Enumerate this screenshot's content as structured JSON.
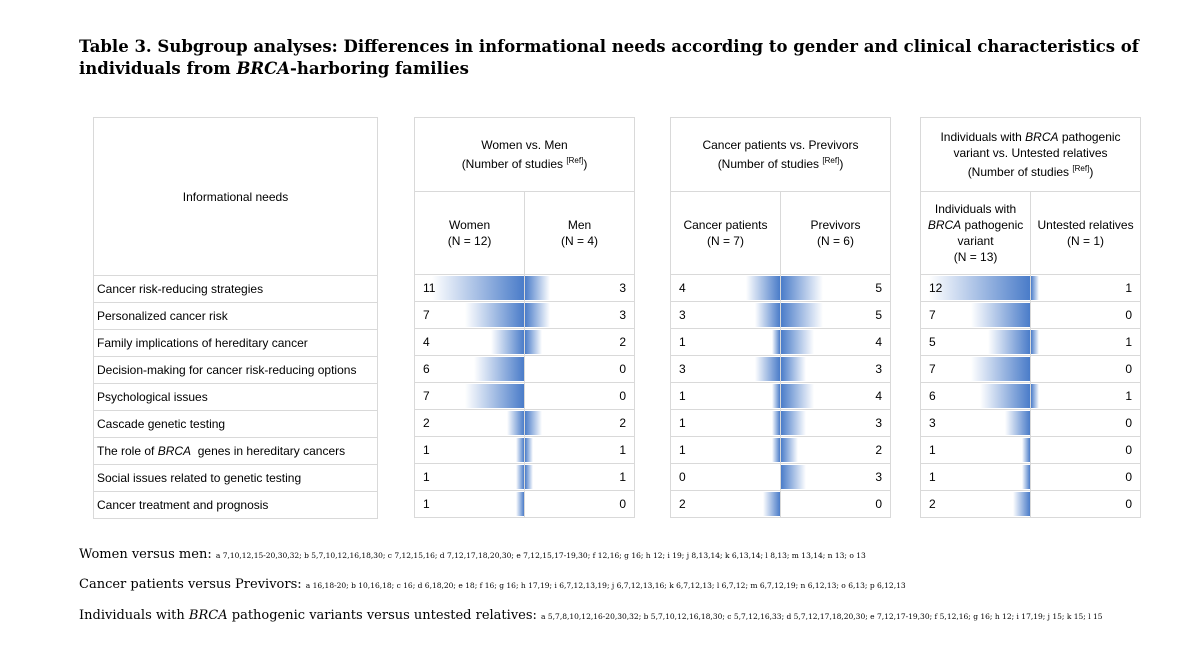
{
  "title": {
    "part1": "Table 3. Subgroup analyses: Differences in informational needs according to gender and clinical characteristics of individuals from ",
    "italic": "BRCA",
    "part2": "-harboring families"
  },
  "label_header": "Informational needs",
  "groups": [
    {
      "title": "Women vs. Men",
      "studies": "(Number of studies ",
      "ref": "[Ref]",
      "close": ")",
      "left": {
        "label": "Women",
        "n": "(N = 12)"
      },
      "right": {
        "label": "Men",
        "n": "(N = 4)"
      },
      "max": 13
    },
    {
      "title": "Cancer patients vs. Previvors",
      "studies": "(Number of studies ",
      "ref": "[Ref]",
      "close": ")",
      "left": {
        "label": "Cancer patients",
        "n": "(N = 7)"
      },
      "right": {
        "label": "Previvors",
        "n": "(N = 6)"
      },
      "max": 13
    },
    {
      "title_pre": "Individuals with ",
      "title_italic": "BRCA",
      "title_post": " pathogenic variant vs. Untested relatives",
      "studies": "(Number of studies ",
      "ref": "[Ref]",
      "close": ")",
      "left": {
        "label_pre": "Individuals with",
        "label_italic": "BRCA",
        "label_post": " pathogenic variant",
        "n": "(N = 13)"
      },
      "right": {
        "label": "Untested relatives",
        "n": "(N = 1)"
      },
      "max": 13
    }
  ],
  "rows": [
    {
      "label": "Cancer risk-reducing strategies",
      "values": [
        [
          11,
          3
        ],
        [
          4,
          5
        ],
        [
          12,
          1
        ]
      ]
    },
    {
      "label": "Personalized cancer risk",
      "values": [
        [
          7,
          3
        ],
        [
          3,
          5
        ],
        [
          7,
          0
        ]
      ]
    },
    {
      "label": "Family implications of hereditary cancer",
      "values": [
        [
          4,
          2
        ],
        [
          1,
          4
        ],
        [
          5,
          1
        ]
      ]
    },
    {
      "label": "Decision-making for cancer risk-reducing options",
      "values": [
        [
          6,
          0
        ],
        [
          3,
          3
        ],
        [
          7,
          0
        ]
      ]
    },
    {
      "label": "Psychological issues",
      "values": [
        [
          7,
          0
        ],
        [
          1,
          4
        ],
        [
          6,
          1
        ]
      ]
    },
    {
      "label": "Cascade genetic testing",
      "values": [
        [
          2,
          2
        ],
        [
          1,
          3
        ],
        [
          3,
          0
        ]
      ]
    },
    {
      "label_pre": "The role of ",
      "label_italic": "BRCA",
      "label_post": "  genes in hereditary cancers",
      "values": [
        [
          1,
          1
        ],
        [
          1,
          2
        ],
        [
          1,
          0
        ]
      ]
    },
    {
      "label": "Social issues related to genetic testing",
      "values": [
        [
          1,
          1
        ],
        [
          0,
          3
        ],
        [
          1,
          0
        ]
      ]
    },
    {
      "label": "Cancer treatment and prognosis",
      "values": [
        [
          1,
          0
        ],
        [
          2,
          0
        ],
        [
          2,
          0
        ]
      ]
    }
  ],
  "footnotes": [
    {
      "label": "Women versus men: ",
      "refs": "a 7,10,12,15-20,30,32; b 5,7,10,12,16,18,30; c 7,12,15,16; d 7,12,17,18,20,30; e 7,12,15,17-19,30; f 12,16; g 16; h 12; i 19; j 8,13,14; k 6,13,14; l 8,13; m 13,14; n 13; o 13"
    },
    {
      "label": "Cancer patients versus Previvors: ",
      "refs": "a 16,18-20; b 10,16,18; c 16; d 6,18,20; e 18; f 16; g 16; h 17,19; i 6,7,12,13,19; j 6,7,12,13,16; k 6,7,12,13; l 6,7,12; m 6,7,12,19; n 6,12,13; o 6,13; p 6,12,13"
    },
    {
      "label_pre": "Individuals with ",
      "label_italic": "BRCA",
      "label_post": " pathogenic variants versus untested relatives: ",
      "refs": "a 5,7,8,10,12,16-20,30,32; b 5,7,10,12,16,18,30; c 5,7,12,16,33; d 5,7,12,17,18,20,30; e 7,12,17-19,30; f 5,12,16; g 16; h 12; i 17,19; j 15; k 15; l 15"
    }
  ]
}
